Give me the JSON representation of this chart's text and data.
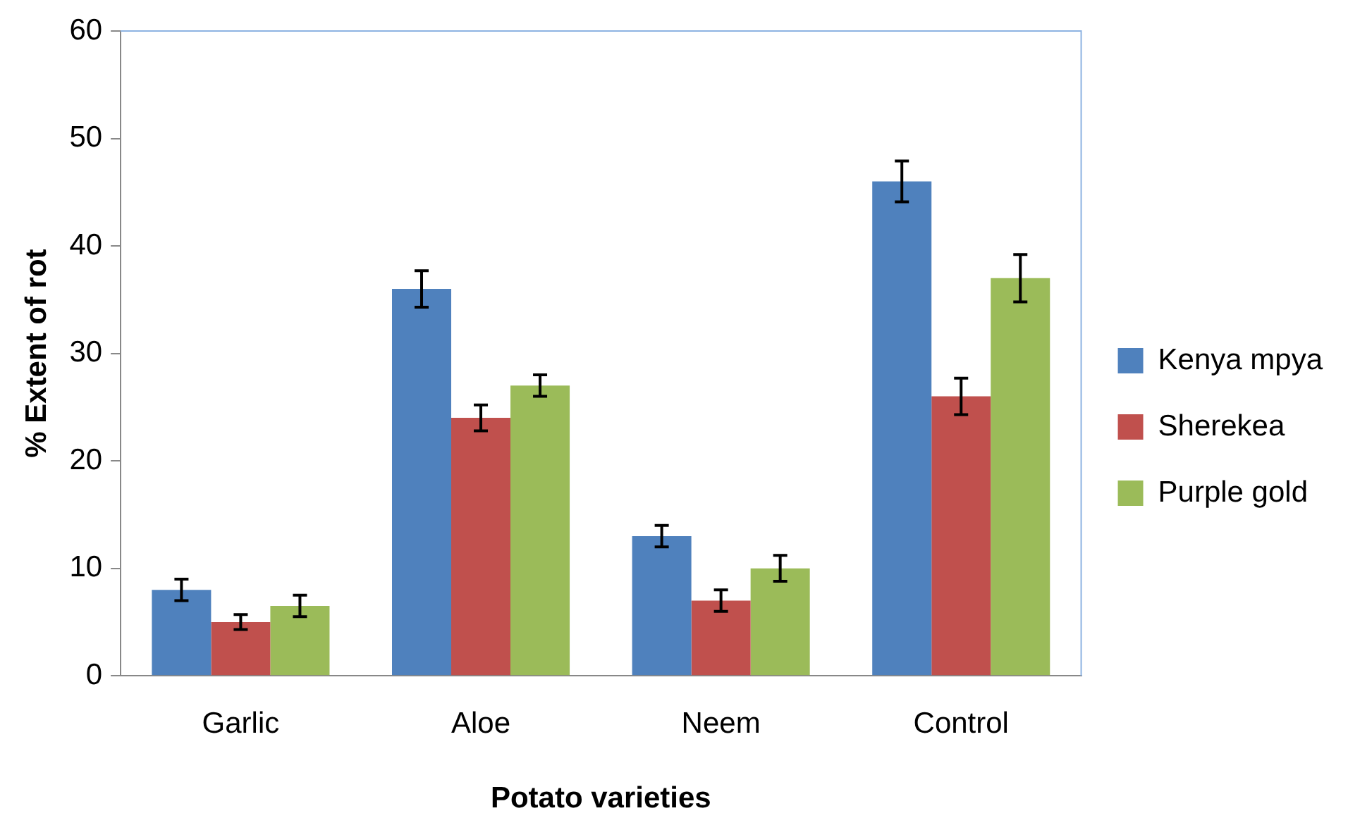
{
  "chart_data": {
    "type": "bar",
    "xlabel": "Potato varieties",
    "ylabel": "% Extent of rot",
    "categories": [
      "Garlic",
      "Aloe",
      "Neem",
      "Control"
    ],
    "series": [
      {
        "name": "Kenya mpya",
        "color": "#4f81bd",
        "values": [
          8,
          36,
          13,
          46
        ],
        "errors": [
          1,
          1.7,
          1,
          1.9
        ]
      },
      {
        "name": "Sherekea",
        "color": "#c0504d",
        "values": [
          5,
          24,
          7,
          26
        ],
        "errors": [
          0.7,
          1.2,
          1,
          1.7
        ]
      },
      {
        "name": "Purple gold",
        "color": "#9bbb59",
        "values": [
          6.5,
          27,
          10,
          37
        ],
        "errors": [
          1,
          1,
          1.2,
          2.2
        ]
      }
    ],
    "ylim": [
      0,
      60
    ],
    "yticks": [
      0,
      10,
      20,
      30,
      40,
      50,
      60
    ],
    "grid": false,
    "legend": "right"
  }
}
